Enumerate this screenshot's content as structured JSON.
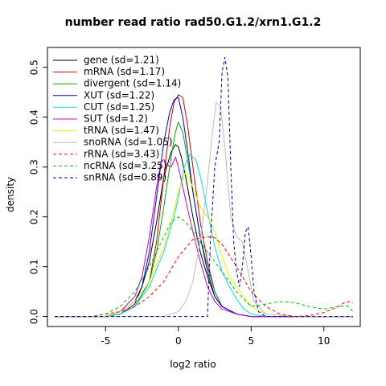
{
  "chart_data": {
    "type": "line",
    "title": "number read ratio rad50.G1.2/xrn1.G1.2",
    "xlabel": "log2 ratio",
    "ylabel": "density",
    "xlim": [
      -9,
      12.5
    ],
    "ylim": [
      -0.02,
      0.54
    ],
    "xticks": [
      -5,
      0,
      5,
      10
    ],
    "yticks": [
      0.0,
      0.1,
      0.2,
      0.3,
      0.4,
      0.5
    ],
    "grid": false,
    "legend_position": "top-left",
    "series": [
      {
        "name": "gene (sd=1.21)",
        "color": "#000000",
        "dash": "solid",
        "x": [
          -8.5,
          -5,
          -4,
          -3,
          -2.5,
          -2,
          -1.5,
          -1,
          -0.5,
          -0.2,
          0,
          0.2,
          0.5,
          1,
          1.5,
          2,
          2.5,
          3,
          4,
          5,
          6,
          8,
          10,
          12
        ],
        "y": [
          0,
          0,
          0.01,
          0.03,
          0.06,
          0.11,
          0.19,
          0.28,
          0.33,
          0.345,
          0.34,
          0.32,
          0.28,
          0.2,
          0.13,
          0.08,
          0.04,
          0.02,
          0.005,
          0,
          0,
          0,
          0,
          0
        ]
      },
      {
        "name": "mRNA (sd=1.17)",
        "color": "#cc0000",
        "dash": "solid",
        "x": [
          -8.5,
          -5,
          -4,
          -3,
          -2,
          -1.5,
          -1,
          -0.6,
          -0.3,
          0,
          0.3,
          0.6,
          1,
          1.5,
          2,
          2.5,
          3,
          4,
          5,
          6,
          8,
          10,
          12
        ],
        "y": [
          0,
          0,
          0.005,
          0.02,
          0.07,
          0.15,
          0.28,
          0.38,
          0.43,
          0.445,
          0.44,
          0.39,
          0.3,
          0.19,
          0.11,
          0.05,
          0.02,
          0.005,
          0,
          0,
          0,
          0,
          0
        ]
      },
      {
        "name": "divergent (sd=1.14)",
        "color": "#00aa00",
        "dash": "solid",
        "x": [
          -8.5,
          -5,
          -4,
          -3,
          -2,
          -1.5,
          -1,
          -0.5,
          -0.2,
          0,
          0.3,
          0.6,
          1,
          1.5,
          2,
          2.5,
          3,
          4,
          5,
          6,
          8,
          10,
          12
        ],
        "y": [
          0,
          0,
          0.005,
          0.02,
          0.07,
          0.13,
          0.22,
          0.32,
          0.37,
          0.39,
          0.37,
          0.32,
          0.25,
          0.16,
          0.1,
          0.05,
          0.02,
          0.005,
          0,
          0,
          0,
          0,
          0
        ]
      },
      {
        "name": "XUT (sd=1.22)",
        "color": "#0000cc",
        "dash": "solid",
        "x": [
          -8.5,
          -5,
          -4,
          -3,
          -2.5,
          -2,
          -1.5,
          -1,
          -0.6,
          -0.3,
          0,
          0.3,
          0.6,
          1,
          1.5,
          2,
          2.5,
          3,
          4,
          5,
          6,
          8,
          10,
          12
        ],
        "y": [
          0,
          0,
          0.005,
          0.025,
          0.06,
          0.13,
          0.24,
          0.35,
          0.41,
          0.435,
          0.44,
          0.4,
          0.34,
          0.25,
          0.16,
          0.09,
          0.04,
          0.02,
          0.005,
          0,
          0,
          0,
          0,
          0
        ]
      },
      {
        "name": "CUT (sd=1.25)",
        "color": "#00dddd",
        "dash": "solid",
        "x": [
          -8.5,
          -5,
          -4,
          -3,
          -2,
          -1,
          -0.3,
          0,
          0.4,
          0.8,
          1.2,
          1.6,
          2,
          2.5,
          3,
          3.5,
          4,
          4.5,
          5,
          6,
          8,
          10,
          12
        ],
        "y": [
          0,
          0,
          0.005,
          0.02,
          0.06,
          0.13,
          0.2,
          0.24,
          0.3,
          0.325,
          0.315,
          0.27,
          0.21,
          0.14,
          0.09,
          0.06,
          0.035,
          0.015,
          0.005,
          0,
          0,
          0,
          0
        ]
      },
      {
        "name": "SUT (sd=1.2)",
        "color": "#cc00cc",
        "dash": "solid",
        "x": [
          -8.5,
          -5,
          -4,
          -3,
          -2.5,
          -2,
          -1.5,
          -1.2,
          -1,
          -0.8,
          -0.5,
          -0.2,
          0,
          0.3,
          0.6,
          1,
          1.5,
          2,
          2.5,
          3,
          4,
          5,
          6,
          8,
          10,
          12
        ],
        "y": [
          0,
          0,
          0.01,
          0.04,
          0.08,
          0.16,
          0.26,
          0.31,
          0.315,
          0.305,
          0.3,
          0.32,
          0.3,
          0.26,
          0.22,
          0.17,
          0.11,
          0.06,
          0.03,
          0.015,
          0.005,
          0,
          0,
          0,
          0,
          0
        ]
      },
      {
        "name": "tRNA (sd=1.47)",
        "color": "#eeee00",
        "dash": "solid",
        "x": [
          -8.5,
          -5,
          -4,
          -3,
          -2,
          -1,
          -0.5,
          0,
          0.5,
          1,
          1.5,
          2,
          2.5,
          3,
          3.5,
          4,
          4.5,
          5,
          6,
          8,
          10,
          12
        ],
        "y": [
          0,
          0,
          0.01,
          0.03,
          0.07,
          0.14,
          0.19,
          0.25,
          0.29,
          0.26,
          0.22,
          0.2,
          0.17,
          0.12,
          0.08,
          0.06,
          0.04,
          0.02,
          0.005,
          0,
          0,
          0
        ]
      },
      {
        "name": "snoRNA (sd=1.05)",
        "color": "#bbbbbb",
        "dash": "solid",
        "x": [
          -8.5,
          -1,
          0,
          0.5,
          1,
          1.5,
          2,
          2.3,
          2.6,
          2.9,
          3.2,
          3.6,
          4,
          4.4,
          4.8,
          5.2,
          6,
          8,
          12
        ],
        "y": [
          0,
          0,
          0.01,
          0.03,
          0.07,
          0.15,
          0.27,
          0.36,
          0.43,
          0.42,
          0.34,
          0.2,
          0.16,
          0.15,
          0.09,
          0.03,
          0.005,
          0,
          0
        ]
      },
      {
        "name": "rRNA (sd=3.43)",
        "color": "#ff0000",
        "dash": "dashed",
        "x": [
          -8.5,
          -6,
          -5,
          -4,
          -3,
          -2,
          -1,
          0,
          1,
          2,
          2.5,
          3,
          4,
          5,
          6,
          7,
          8,
          9,
          10,
          11,
          11.5,
          12
        ],
        "y": [
          0,
          0,
          0.005,
          0.01,
          0.02,
          0.04,
          0.07,
          0.12,
          0.155,
          0.16,
          0.158,
          0.145,
          0.1,
          0.05,
          0.02,
          0.005,
          0,
          0.002,
          0.008,
          0.02,
          0.03,
          0.028
        ]
      },
      {
        "name": "ncRNA (sd=3.25)",
        "color": "#00bb00",
        "dash": "dashed",
        "x": [
          -8.5,
          -6,
          -5,
          -4,
          -3,
          -2,
          -1,
          -0.5,
          0,
          0.5,
          1,
          2,
          3,
          4,
          5,
          6,
          7,
          8,
          9,
          10,
          11,
          11.6,
          12
        ],
        "y": [
          0,
          0,
          0.005,
          0.02,
          0.05,
          0.1,
          0.16,
          0.19,
          0.2,
          0.19,
          0.17,
          0.13,
          0.09,
          0.05,
          0.02,
          0.025,
          0.03,
          0.028,
          0.02,
          0.015,
          0.02,
          0.022,
          0.01
        ]
      },
      {
        "name": "snRNA (sd=0.89)",
        "color": "#000099",
        "dash": "dashed",
        "x": [
          -8.5,
          1,
          2,
          2.2,
          2.5,
          2.8,
          3,
          3.2,
          3.4,
          3.6,
          3.8,
          4,
          4.2,
          4.4,
          4.6,
          4.8,
          5,
          5.2,
          5.5,
          6,
          12
        ],
        "y": [
          0,
          0,
          0,
          0.15,
          0.3,
          0.35,
          0.49,
          0.52,
          0.48,
          0.3,
          0.15,
          0.09,
          0.06,
          0.1,
          0.17,
          0.18,
          0.12,
          0.05,
          0.01,
          0,
          0
        ]
      }
    ]
  }
}
